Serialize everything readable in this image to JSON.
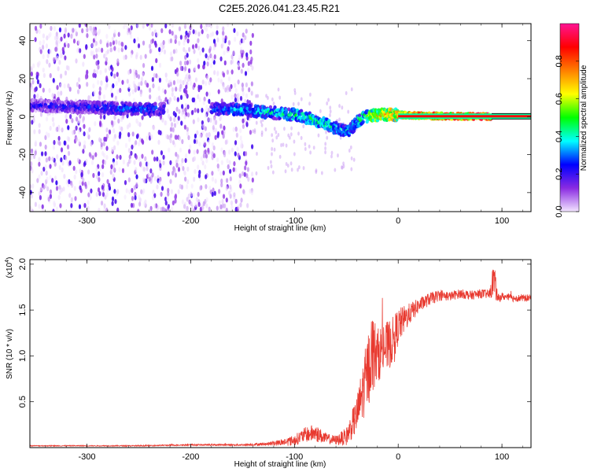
{
  "title": "C2E5.2026.041.23.45.R21",
  "chart_data": [
    {
      "type": "heatmap",
      "name": "spectrogram",
      "xlabel": "Height of straight line (km)",
      "ylabel": "Frequency (Hz)",
      "xlim": [
        -355,
        128
      ],
      "ylim": [
        -50,
        49
      ],
      "xticks": [
        -300,
        -200,
        -100,
        0,
        100
      ],
      "yticks": [
        -40,
        -20,
        0,
        20,
        40
      ],
      "colorbar": {
        "label": "Normalized spectral amplitude",
        "range": [
          0,
          1
        ],
        "ticks": [
          0.0,
          0.2,
          0.4,
          0.6,
          0.8
        ],
        "colors": [
          "#f3e5ff",
          "#8a2be2",
          "#0000ff",
          "#00ffff",
          "#00ff00",
          "#ffff00",
          "#ff7f00",
          "#ff0000",
          "#ff1493"
        ]
      },
      "noise_region_x": [
        -355,
        -140
      ],
      "ridge": {
        "x": [
          -355,
          -300,
          -250,
          -230,
          -180,
          -160,
          -140,
          -120,
          -100,
          -85,
          -70,
          -60,
          -50,
          -45,
          -40,
          -35,
          -30,
          -20,
          -10,
          0,
          20,
          40,
          60,
          90,
          128
        ],
        "frequency": [
          6,
          5,
          4,
          4,
          4,
          4,
          3,
          2,
          1,
          -1,
          -4,
          -6,
          -8,
          -6,
          -3,
          -1,
          0,
          1,
          1,
          1,
          0.5,
          0.3,
          0.2,
          0.1,
          0.1
        ],
        "amplitude": [
          0.25,
          0.28,
          0.35,
          0.3,
          0.3,
          0.38,
          0.42,
          0.44,
          0.46,
          0.48,
          0.46,
          0.42,
          0.4,
          0.42,
          0.45,
          0.52,
          0.6,
          0.7,
          0.75,
          0.8,
          0.85,
          0.9,
          0.92,
          0.95,
          0.95
        ]
      },
      "gap_x": [
        -225,
        -180
      ]
    },
    {
      "type": "line",
      "name": "snr",
      "xlabel": "Height of straight line (km)",
      "ylabel": "SNR (10 * v/v)",
      "y_scale_label": "(x10",
      "y_scale_exponent": "4",
      "xlim": [
        -355,
        128
      ],
      "ylim": [
        0,
        2.05
      ],
      "xticks": [
        -300,
        -200,
        -100,
        0,
        100
      ],
      "yticks": [
        0.5,
        1.0,
        1.5,
        2.0
      ],
      "ytick_labels": [
        "0.5",
        "1.0",
        "1.5",
        "2.0"
      ],
      "color": "#e8392f",
      "series": [
        {
          "name": "SNR",
          "x": [
            -355,
            -300,
            -250,
            -200,
            -150,
            -125,
            -110,
            -100,
            -90,
            -80,
            -70,
            -60,
            -50,
            -40,
            -30,
            -25,
            -20,
            -15,
            -10,
            -5,
            0,
            10,
            20,
            30,
            40,
            50,
            60,
            70,
            80,
            88,
            92,
            96,
            100,
            110,
            128
          ],
          "values": [
            0.02,
            0.02,
            0.02,
            0.03,
            0.03,
            0.04,
            0.06,
            0.08,
            0.14,
            0.16,
            0.1,
            0.08,
            0.12,
            0.35,
            0.8,
            1.05,
            1.0,
            1.08,
            1.1,
            1.18,
            1.32,
            1.45,
            1.55,
            1.62,
            1.66,
            1.65,
            1.68,
            1.66,
            1.68,
            1.67,
            1.85,
            1.62,
            1.65,
            1.63,
            1.63
          ],
          "noise": [
            0.005,
            0.005,
            0.006,
            0.008,
            0.01,
            0.02,
            0.04,
            0.06,
            0.08,
            0.1,
            0.06,
            0.05,
            0.1,
            0.2,
            0.4,
            0.45,
            0.3,
            0.28,
            0.28,
            0.25,
            0.2,
            0.12,
            0.08,
            0.07,
            0.06,
            0.05,
            0.05,
            0.05,
            0.05,
            0.05,
            0.2,
            0.05,
            0.04,
            0.04,
            0.04
          ]
        }
      ]
    }
  ]
}
